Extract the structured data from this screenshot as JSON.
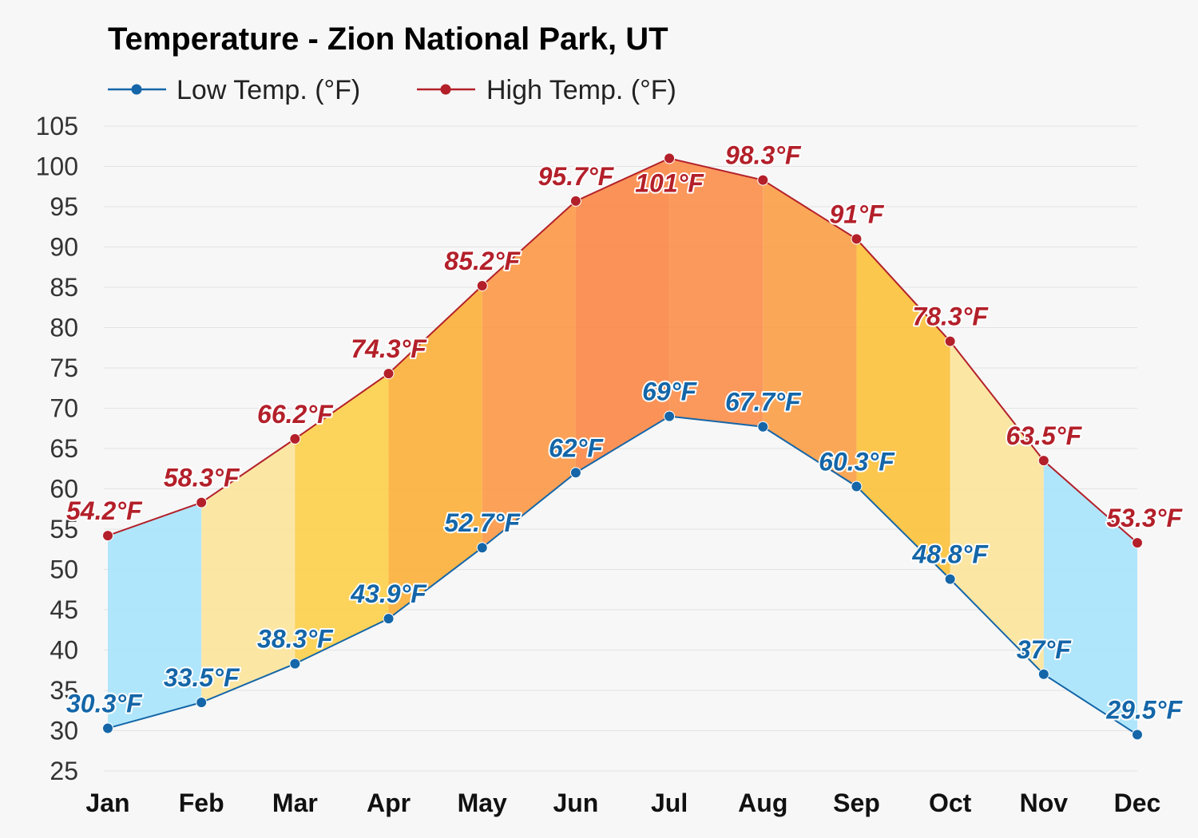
{
  "chart_data": {
    "type": "line",
    "title": "Temperature - Zion National Park, UT",
    "categories": [
      "Jan",
      "Feb",
      "Mar",
      "Apr",
      "May",
      "Jun",
      "Jul",
      "Aug",
      "Sep",
      "Oct",
      "Nov",
      "Dec"
    ],
    "series": [
      {
        "name": "Low Temp. (°F)",
        "color": "#1466a8",
        "values": [
          30.3,
          33.5,
          38.3,
          43.9,
          52.7,
          62,
          69,
          67.7,
          60.3,
          48.8,
          37,
          29.5
        ],
        "labels": [
          "30.3°F",
          "33.5°F",
          "38.3°F",
          "43.9°F",
          "52.7°F",
          "62°F",
          "69°F",
          "67.7°F",
          "60.3°F",
          "48.8°F",
          "37°F",
          "29.5°F"
        ]
      },
      {
        "name": "High Temp. (°F)",
        "color": "#b3202a",
        "values": [
          54.2,
          58.3,
          66.2,
          74.3,
          85.2,
          95.7,
          101,
          98.3,
          91,
          78.3,
          63.5,
          53.3
        ],
        "labels": [
          "54.2°F",
          "58.3°F",
          "66.2°F",
          "74.3°F",
          "85.2°F",
          "95.7°F",
          "101°F",
          "98.3°F",
          "91°F",
          "78.3°F",
          "63.5°F",
          "53.3°F"
        ]
      }
    ],
    "band_colors": [
      "#a9e4fb",
      "#fbe49c",
      "#fccf4d",
      "#fbb13d",
      "#fb9a4a",
      "#fb8a4a",
      "#fb8f4e",
      "#fba04a",
      "#fbc23e",
      "#fbe49c",
      "#a9e4fb",
      "#69d6fa"
    ],
    "y_ticks": [
      "25",
      "30",
      "35",
      "40",
      "45",
      "50",
      "55",
      "60",
      "65",
      "70",
      "75",
      "80",
      "85",
      "90",
      "95",
      "100",
      "105"
    ],
    "ylim": [
      25,
      105
    ],
    "grid": true,
    "legend_position": "top-left"
  }
}
